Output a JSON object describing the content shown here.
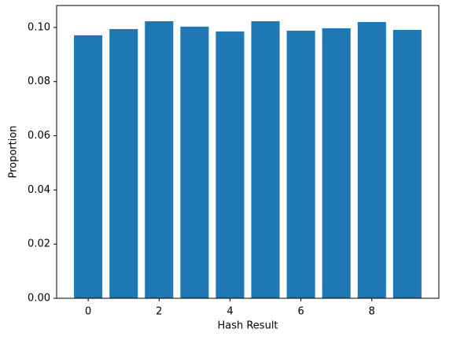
{
  "chart_data": {
    "type": "bar",
    "x_label": "Hash Result",
    "y_label": "Proportion",
    "x": [
      0,
      1,
      2,
      3,
      4,
      5,
      6,
      7,
      8,
      9
    ],
    "values": [
      0.0971,
      0.0994,
      0.1023,
      0.1003,
      0.0985,
      0.1023,
      0.0988,
      0.0997,
      0.102,
      0.0991
    ],
    "color": "#1f77b4",
    "xlim": [
      -0.89,
      9.89
    ],
    "xticks": [
      0,
      2,
      4,
      6,
      8
    ],
    "ylim": [
      0,
      0.1081
    ],
    "yticks": [
      {
        "value": 0,
        "label": "0.00"
      },
      {
        "value": 0.02,
        "label": "0.02"
      },
      {
        "value": 0.04,
        "label": "0.04"
      },
      {
        "value": 0.06,
        "label": "0.06"
      },
      {
        "value": 0.08,
        "label": "0.08"
      },
      {
        "value": 0.1,
        "label": "0.10"
      }
    ],
    "grid": false
  }
}
